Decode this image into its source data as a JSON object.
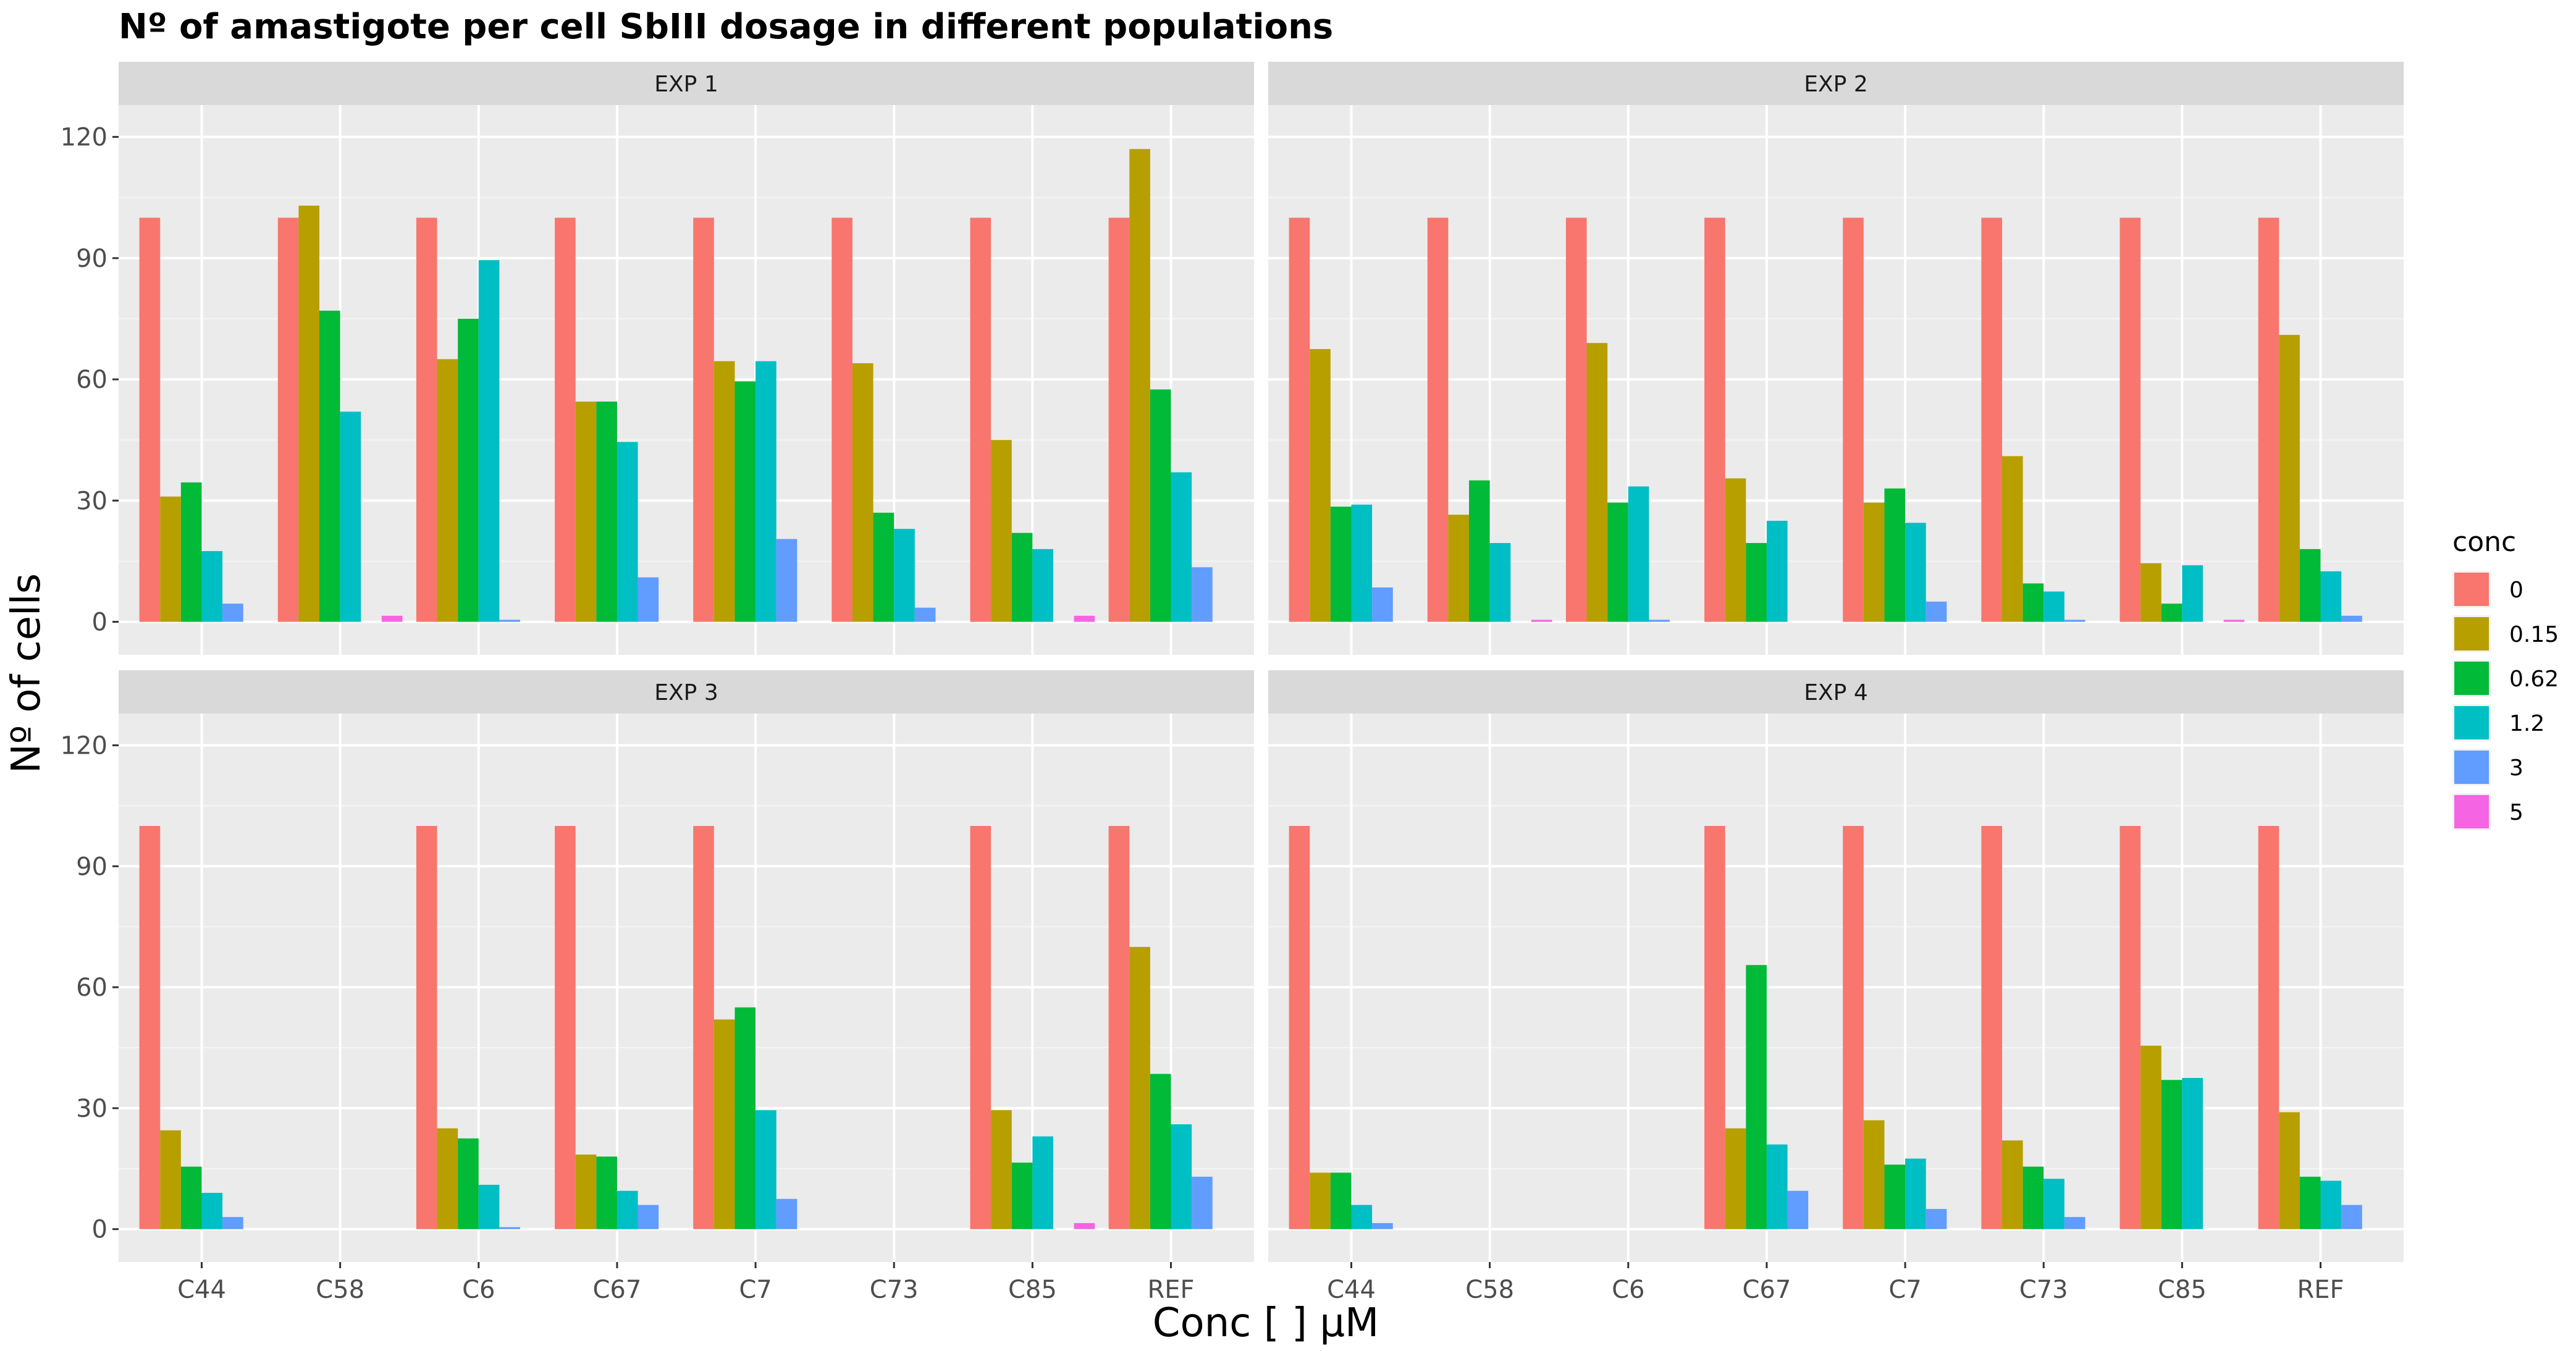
{
  "chart_data": {
    "type": "bar",
    "title": "Nº of amastigote per cell SbIII dosage in different populations",
    "xlabel": "Conc [   ] µM",
    "ylabel": "Nº of cells",
    "ylim": [
      0,
      125
    ],
    "yticks": [
      0,
      30,
      60,
      90,
      120
    ],
    "grid": true,
    "legend": {
      "title": "conc",
      "position": "right",
      "entries": [
        {
          "label": "0",
          "color": "#F8766D"
        },
        {
          "label": "0.15",
          "color": "#B79F00"
        },
        {
          "label": "0.62",
          "color": "#00BA38"
        },
        {
          "label": "1.2",
          "color": "#00BFC4"
        },
        {
          "label": "3",
          "color": "#619CFF"
        },
        {
          "label": "5",
          "color": "#F564E3"
        }
      ]
    },
    "categories": [
      "C44",
      "C58",
      "C6",
      "C67",
      "C7",
      "C73",
      "C85",
      "REF"
    ],
    "series_names": [
      "0",
      "0.15",
      "0.62",
      "1.2",
      "3",
      "5"
    ],
    "panels": [
      {
        "label": "EXP 1",
        "values": [
          [
            100,
            31,
            34.5,
            17.5,
            4.5,
            null
          ],
          [
            100,
            103,
            77,
            52,
            null,
            1.5
          ],
          [
            100,
            65,
            75,
            89.5,
            0.5,
            null
          ],
          [
            100,
            54.5,
            54.5,
            44.5,
            11,
            null
          ],
          [
            100,
            64.5,
            59.5,
            64.5,
            20.5,
            null
          ],
          [
            100,
            64,
            27,
            23,
            3.5,
            null
          ],
          [
            100,
            45,
            22,
            18,
            null,
            1.5
          ],
          [
            100,
            117,
            57.5,
            37,
            13.5,
            null
          ]
        ]
      },
      {
        "label": "EXP 2",
        "values": [
          [
            100,
            67.5,
            28.5,
            29,
            8.5,
            null
          ],
          [
            100,
            26.5,
            35,
            19.5,
            null,
            0.5
          ],
          [
            100,
            69,
            29.5,
            33.5,
            0.5,
            null
          ],
          [
            100,
            35.5,
            19.5,
            25,
            null,
            null
          ],
          [
            100,
            29.5,
            33,
            24.5,
            5,
            null
          ],
          [
            100,
            41,
            9.5,
            7.5,
            0.5,
            null
          ],
          [
            100,
            14.5,
            4.5,
            14,
            null,
            0.5
          ],
          [
            100,
            71,
            18,
            12.5,
            1.5,
            null
          ]
        ]
      },
      {
        "label": "EXP 3",
        "values": [
          [
            100,
            24.5,
            15.5,
            9,
            3,
            null
          ],
          [
            null,
            null,
            null,
            null,
            null,
            null
          ],
          [
            100,
            25,
            22.5,
            11,
            0.5,
            null
          ],
          [
            100,
            18.5,
            18,
            9.5,
            6,
            null
          ],
          [
            100,
            52,
            55,
            29.5,
            7.5,
            null
          ],
          [
            null,
            null,
            null,
            null,
            null,
            null
          ],
          [
            100,
            29.5,
            16.5,
            23,
            null,
            1.5
          ],
          [
            100,
            70,
            38.5,
            26,
            13,
            null
          ]
        ]
      },
      {
        "label": "EXP 4",
        "values": [
          [
            100,
            14,
            14,
            6,
            1.5,
            null
          ],
          [
            null,
            null,
            null,
            null,
            null,
            null
          ],
          [
            null,
            null,
            null,
            null,
            null,
            null
          ],
          [
            100,
            25,
            65.5,
            21,
            9.5,
            null
          ],
          [
            100,
            27,
            16,
            17.5,
            5,
            null
          ],
          [
            100,
            22,
            15.5,
            12.5,
            3,
            null
          ],
          [
            100,
            45.5,
            37,
            37.5,
            null,
            null
          ],
          [
            100,
            29,
            13,
            12,
            6,
            null
          ]
        ]
      }
    ]
  }
}
